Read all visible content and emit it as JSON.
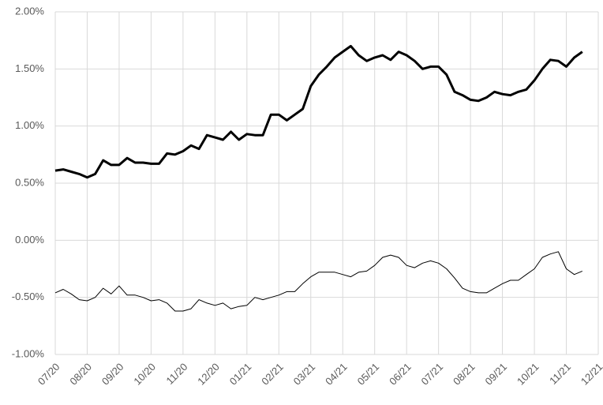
{
  "chart_data": {
    "type": "line",
    "categories": [
      "07/20",
      null,
      null,
      null,
      "08/20",
      null,
      null,
      null,
      "09/20",
      null,
      null,
      null,
      "10/20",
      null,
      null,
      null,
      "11/20",
      null,
      null,
      null,
      "12/20",
      null,
      null,
      null,
      "01/21",
      null,
      null,
      null,
      "02/21",
      null,
      null,
      null,
      "03/21",
      null,
      null,
      null,
      "04/21",
      null,
      null,
      null,
      "05/21",
      null,
      null,
      null,
      "06/21",
      null,
      null,
      null,
      "07/21",
      null,
      null,
      null,
      "08/21",
      null,
      null,
      null,
      "09/21",
      null,
      null,
      null,
      "10/21",
      null,
      null,
      null,
      "11/21",
      null,
      null,
      null,
      "12/21"
    ],
    "series": [
      {
        "color": "#000000",
        "values": [
          0.61,
          0.62,
          0.6,
          0.58,
          0.55,
          0.58,
          0.7,
          0.66,
          0.66,
          0.72,
          0.68,
          0.68,
          0.67,
          0.67,
          0.76,
          0.75,
          0.78,
          0.83,
          0.8,
          0.92,
          0.9,
          0.88,
          0.95,
          0.88,
          0.93,
          0.92,
          0.92,
          1.1,
          1.1,
          1.05,
          1.1,
          1.15,
          1.35,
          1.45,
          1.52,
          1.6,
          1.65,
          1.7,
          1.62,
          1.57,
          1.6,
          1.62,
          1.58,
          1.65,
          1.62,
          1.57,
          1.5,
          1.52,
          1.52,
          1.45,
          1.3,
          1.27,
          1.23,
          1.22,
          1.25,
          1.3,
          1.28,
          1.27,
          1.3,
          1.32,
          1.4,
          1.5,
          1.58,
          1.57,
          1.52,
          1.6,
          1.65,
          null,
          null
        ]
      },
      {
        "color": "#000000",
        "values": [
          -0.46,
          -0.43,
          -0.47,
          -0.52,
          -0.53,
          -0.5,
          -0.42,
          -0.47,
          -0.4,
          -0.48,
          -0.48,
          -0.5,
          -0.53,
          -0.52,
          -0.55,
          -0.62,
          -0.62,
          -0.6,
          -0.52,
          -0.55,
          -0.57,
          -0.55,
          -0.6,
          -0.58,
          -0.57,
          -0.5,
          -0.52,
          -0.5,
          -0.48,
          -0.45,
          -0.45,
          -0.38,
          -0.32,
          -0.28,
          -0.28,
          -0.28,
          -0.3,
          -0.32,
          -0.28,
          -0.27,
          -0.22,
          -0.15,
          -0.13,
          -0.15,
          -0.22,
          -0.24,
          -0.2,
          -0.18,
          -0.2,
          -0.25,
          -0.33,
          -0.42,
          -0.45,
          -0.46,
          -0.46,
          -0.42,
          -0.38,
          -0.35,
          -0.35,
          -0.3,
          -0.25,
          -0.15,
          -0.12,
          -0.1,
          -0.25,
          -0.3,
          -0.27,
          null,
          null
        ]
      }
    ],
    "ylim": [
      -1,
      2
    ],
    "yticks": [
      {
        "value": -1,
        "label": "-1.00%"
      },
      {
        "value": -0.5,
        "label": "-0.50%"
      },
      {
        "value": 0,
        "label": "0.00%"
      },
      {
        "value": 0.5,
        "label": "0.50%"
      },
      {
        "value": 1,
        "label": "1.00%"
      },
      {
        "value": 1.5,
        "label": "1.50%"
      },
      {
        "value": 2,
        "label": "2.00%"
      }
    ],
    "grid": true
  }
}
